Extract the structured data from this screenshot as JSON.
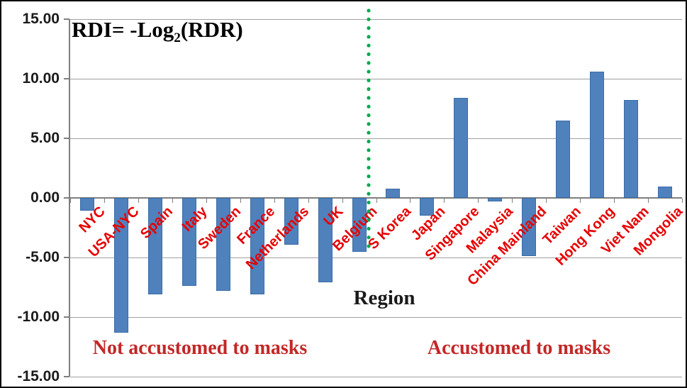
{
  "colors": {
    "bar": "#4F81BD",
    "bar_border": "#3B6CA5",
    "gridline": "#A0A0A0",
    "axis_line": "#7F7F7F",
    "category_label": "#E60000",
    "annotation": "#C32727",
    "separator_green": "#00A94F",
    "title": "#000000"
  },
  "title_parts": {
    "prefix": "RDI= -Log",
    "subscript": "2",
    "suffix": "(RDR)"
  },
  "chart_data": {
    "type": "bar",
    "title": "RDI= -Log2(RDR)",
    "xlabel": "Region",
    "ylabel": "",
    "ylim": [
      -15,
      15
    ],
    "ytick_step": 5,
    "ytick_labels": [
      "15.00",
      "10.00",
      "5.00",
      "0.00",
      "-5.00",
      "-10.00",
      "-15.00"
    ],
    "grid": true,
    "legend": false,
    "categories": [
      "NYC",
      "USA-NYC",
      "Spain",
      "Italy",
      "Sweden",
      "France",
      "Netherlands",
      "UK",
      "Belgium",
      "S Korea",
      "Japan",
      "Singapore",
      "Malaysia",
      "China Mainland",
      "Taiwan",
      "Hong Kong",
      "Viet Nam",
      "Mongolia"
    ],
    "values": [
      -1.1,
      -11.3,
      -8.1,
      -7.4,
      -7.8,
      -8.1,
      -3.9,
      -7.1,
      -4.5,
      0.8,
      -1.5,
      8.4,
      -0.3,
      -4.9,
      6.5,
      10.6,
      8.2,
      0.95
    ],
    "annotations": {
      "left": "Not accustomed to masks",
      "right": "Accustomed to masks",
      "separator": {
        "style": "dotted-vertical-line",
        "color": "#00A94F",
        "between_categories": [
          "Belgium",
          "S Korea"
        ]
      }
    }
  }
}
